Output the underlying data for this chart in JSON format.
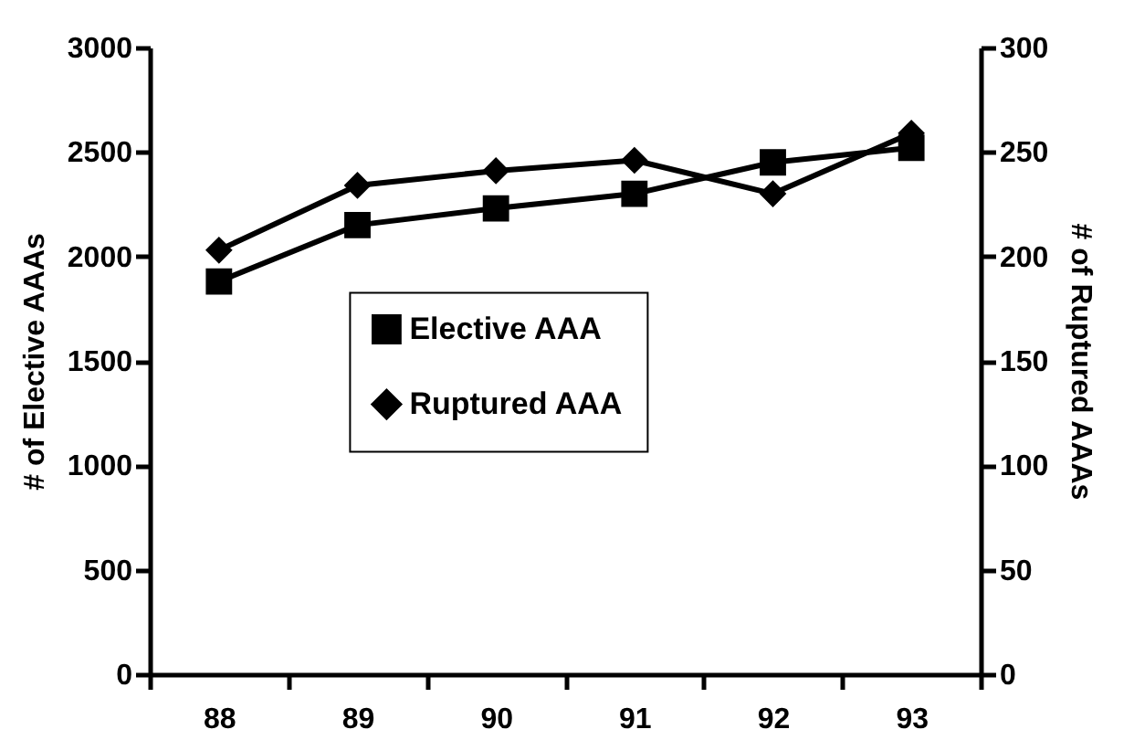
{
  "chart_data": {
    "type": "line",
    "ylabel": "# of Elective AAAs",
    "y2label": "# of Ruptured AAAs",
    "categories": [
      "88",
      "89",
      "90",
      "91",
      "92",
      "93"
    ],
    "series": [
      {
        "name": "Elective AAA",
        "color": "#000000",
        "marker": "square",
        "values": [
          1880,
          2150,
          2230,
          2300,
          2450,
          2520
        ]
      },
      {
        "name": "Ruptured AAA",
        "color": "#000000",
        "marker": "diamond",
        "axis": "y2",
        "values": [
          203,
          234,
          241,
          246,
          230,
          259
        ]
      }
    ],
    "ylim": [
      0,
      3000
    ],
    "yticks": [
      0,
      500,
      1000,
      1500,
      2000,
      2500,
      3000
    ],
    "y2lim": [
      0,
      300
    ],
    "y2ticks": [
      0,
      50,
      100,
      150,
      200,
      250,
      300
    ],
    "grid": false,
    "legend": "center",
    "line_style": "solid"
  }
}
